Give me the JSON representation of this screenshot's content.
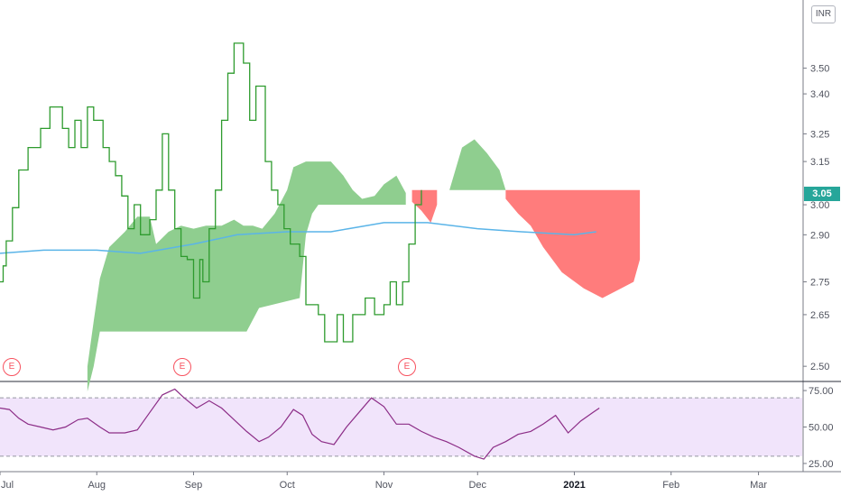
{
  "currency_label": "INR",
  "last_price": "3.05",
  "event_marker_label": "E",
  "colors": {
    "price_line": "#2e9b2e",
    "cloud_bull": "#8fce8f",
    "cloud_bear": "#ff7c7c",
    "ma_line": "#5ab4e8",
    "rsi_line": "#8c2d87",
    "rsi_band": "#f1e4fb",
    "last_price_badge": "#26a69a",
    "event_marker": "#f7525f"
  },
  "chart_data": [
    {
      "type": "line",
      "panel": "price",
      "y_scale": "log",
      "ylim": [
        2.46,
        3.78
      ],
      "y_ticks": [
        "3.50",
        "3.40",
        "3.25",
        "3.15",
        "3.00",
        "2.90",
        "2.75",
        "2.65",
        "2.50"
      ],
      "x_ticks": [
        "Jul",
        "Aug",
        "Sep",
        "Oct",
        "Nov",
        "Dec",
        "2021",
        "Feb",
        "Mar"
      ],
      "x_start": "2020-07-01",
      "x_end": "2021-03-15",
      "grid": false,
      "legend": "none",
      "series": [
        {
          "kind": "step_line",
          "points": [
            [
              "2020-07-01",
              2.75
            ],
            [
              "2020-07-02",
              2.8
            ],
            [
              "2020-07-03",
              2.88
            ],
            [
              "2020-07-05",
              2.99
            ],
            [
              "2020-07-07",
              3.12
            ],
            [
              "2020-07-10",
              3.2
            ],
            [
              "2020-07-14",
              3.27
            ],
            [
              "2020-07-17",
              3.35
            ],
            [
              "2020-07-21",
              3.27
            ],
            [
              "2020-07-23",
              3.2
            ],
            [
              "2020-07-25",
              3.3
            ],
            [
              "2020-07-27",
              3.2
            ],
            [
              "2020-07-29",
              3.35
            ],
            [
              "2020-07-31",
              3.3
            ],
            [
              "2020-08-03",
              3.2
            ],
            [
              "2020-08-05",
              3.15
            ],
            [
              "2020-08-07",
              3.1
            ],
            [
              "2020-08-09",
              3.03
            ],
            [
              "2020-08-11",
              2.92
            ],
            [
              "2020-08-13",
              3.0
            ],
            [
              "2020-08-15",
              2.9
            ],
            [
              "2020-08-18",
              2.95
            ],
            [
              "2020-08-20",
              3.05
            ],
            [
              "2020-08-22",
              3.25
            ],
            [
              "2020-08-24",
              3.05
            ],
            [
              "2020-08-26",
              2.92
            ],
            [
              "2020-08-28",
              2.83
            ],
            [
              "2020-08-30",
              2.82
            ],
            [
              "2020-09-01",
              2.7
            ],
            [
              "2020-09-03",
              2.82
            ],
            [
              "2020-09-04",
              2.75
            ],
            [
              "2020-09-06",
              2.92
            ],
            [
              "2020-09-08",
              3.05
            ],
            [
              "2020-09-10",
              3.3
            ],
            [
              "2020-09-12",
              3.48
            ],
            [
              "2020-09-14",
              3.6
            ],
            [
              "2020-09-17",
              3.52
            ],
            [
              "2020-09-19",
              3.3
            ],
            [
              "2020-09-21",
              3.43
            ],
            [
              "2020-09-24",
              3.15
            ],
            [
              "2020-09-26",
              3.05
            ],
            [
              "2020-09-28",
              3.0
            ],
            [
              "2020-09-30",
              2.92
            ],
            [
              "2020-10-02",
              2.87
            ],
            [
              "2020-10-05",
              2.83
            ],
            [
              "2020-10-07",
              2.68
            ],
            [
              "2020-10-11",
              2.65
            ],
            [
              "2020-10-13",
              2.57
            ],
            [
              "2020-10-17",
              2.65
            ],
            [
              "2020-10-19",
              2.57
            ],
            [
              "2020-10-22",
              2.65
            ],
            [
              "2020-10-26",
              2.7
            ],
            [
              "2020-10-29",
              2.65
            ],
            [
              "2020-11-01",
              2.68
            ],
            [
              "2020-11-03",
              2.75
            ],
            [
              "2020-11-05",
              2.68
            ],
            [
              "2020-11-07",
              2.75
            ],
            [
              "2020-11-09",
              2.87
            ],
            [
              "2020-11-11",
              3.0
            ],
            [
              "2020-11-13",
              3.05
            ]
          ]
        },
        {
          "kind": "moving_average",
          "points": [
            [
              "2020-07-01",
              2.84
            ],
            [
              "2020-07-15",
              2.85
            ],
            [
              "2020-08-01",
              2.85
            ],
            [
              "2020-08-15",
              2.84
            ],
            [
              "2020-09-01",
              2.87
            ],
            [
              "2020-09-15",
              2.9
            ],
            [
              "2020-10-01",
              2.91
            ],
            [
              "2020-10-15",
              2.91
            ],
            [
              "2020-11-01",
              2.94
            ],
            [
              "2020-11-15",
              2.94
            ],
            [
              "2020-12-01",
              2.92
            ],
            [
              "2020-12-15",
              2.91
            ],
            [
              "2021-01-01",
              2.9
            ],
            [
              "2021-01-08",
              2.91
            ]
          ]
        }
      ],
      "cloud": {
        "kind": "ichimoku_kumo",
        "upper": [
          [
            "2020-07-29",
            2.5
          ],
          [
            "2020-07-31",
            2.63
          ],
          [
            "2020-08-02",
            2.76
          ],
          [
            "2020-08-05",
            2.86
          ],
          [
            "2020-08-10",
            2.91
          ],
          [
            "2020-08-14",
            2.96
          ],
          [
            "2020-08-18",
            2.96
          ],
          [
            "2020-08-20",
            2.87
          ],
          [
            "2020-08-24",
            2.91
          ],
          [
            "2020-08-28",
            2.93
          ],
          [
            "2020-09-01",
            2.92
          ],
          [
            "2020-09-05",
            2.93
          ],
          [
            "2020-09-10",
            2.93
          ],
          [
            "2020-09-14",
            2.95
          ],
          [
            "2020-09-17",
            2.93
          ],
          [
            "2020-09-20",
            2.93
          ],
          [
            "2020-09-23",
            2.92
          ],
          [
            "2020-09-27",
            2.97
          ],
          [
            "2020-10-01",
            3.05
          ],
          [
            "2020-10-03",
            3.13
          ],
          [
            "2020-10-07",
            3.15
          ],
          [
            "2020-10-15",
            3.15
          ],
          [
            "2020-10-19",
            3.1
          ],
          [
            "2020-10-22",
            3.05
          ],
          [
            "2020-10-25",
            3.02
          ],
          [
            "2020-10-29",
            3.03
          ],
          [
            "2020-11-01",
            3.07
          ],
          [
            "2020-11-05",
            3.1
          ],
          [
            "2020-11-08",
            3.04
          ]
        ],
        "lower": [
          [
            "2020-07-29",
            2.43
          ],
          [
            "2020-07-31",
            2.5
          ],
          [
            "2020-08-02",
            2.6
          ],
          [
            "2020-08-10",
            2.6
          ],
          [
            "2020-09-01",
            2.6
          ],
          [
            "2020-09-18",
            2.6
          ],
          [
            "2020-09-22",
            2.67
          ],
          [
            "2020-10-05",
            2.7
          ],
          [
            "2020-10-07",
            2.9
          ],
          [
            "2020-10-09",
            2.97
          ],
          [
            "2020-10-11",
            3.0
          ],
          [
            "2020-11-08",
            3.0
          ]
        ],
        "projected": [
          {
            "color": "bear",
            "points": [
              [
                "2020-11-10",
                3.01
              ],
              [
                "2020-11-13",
                2.98
              ],
              [
                "2020-11-16",
                2.94
              ],
              [
                "2020-11-18",
                3.0
              ]
            ]
          },
          {
            "color": "bull",
            "points": [
              [
                "2020-11-22",
                3.05
              ],
              [
                "2020-11-26",
                3.2
              ],
              [
                "2020-11-30",
                3.23
              ],
              [
                "2020-12-04",
                3.18
              ],
              [
                "2020-12-08",
                3.12
              ],
              [
                "2020-12-10",
                3.05
              ]
            ]
          },
          {
            "color": "bear",
            "points": [
              [
                "2020-12-10",
                3.02
              ],
              [
                "2020-12-14",
                2.97
              ],
              [
                "2020-12-18",
                2.93
              ],
              [
                "2020-12-22",
                2.86
              ],
              [
                "2020-12-28",
                2.78
              ],
              [
                "2021-01-04",
                2.73
              ],
              [
                "2021-01-10",
                2.7
              ],
              [
                "2021-01-16",
                2.73
              ],
              [
                "2021-01-20",
                2.75
              ],
              [
                "2021-01-22",
                2.82
              ]
            ]
          }
        ]
      }
    },
    {
      "type": "line",
      "panel": "rsi",
      "ylim": [
        20,
        80
      ],
      "y_ticks": [
        "75.00",
        "50.00",
        "25.00"
      ],
      "band": [
        30,
        70
      ],
      "series": [
        {
          "points": [
            [
              "2020-07-01",
              63
            ],
            [
              "2020-07-04",
              62
            ],
            [
              "2020-07-07",
              56
            ],
            [
              "2020-07-10",
              52
            ],
            [
              "2020-07-14",
              50
            ],
            [
              "2020-07-18",
              48
            ],
            [
              "2020-07-22",
              50
            ],
            [
              "2020-07-26",
              55
            ],
            [
              "2020-07-29",
              56
            ],
            [
              "2020-08-02",
              50
            ],
            [
              "2020-08-05",
              46
            ],
            [
              "2020-08-10",
              46
            ],
            [
              "2020-08-14",
              48
            ],
            [
              "2020-08-18",
              60
            ],
            [
              "2020-08-22",
              72
            ],
            [
              "2020-08-26",
              76
            ],
            [
              "2020-08-29",
              70
            ],
            [
              "2020-09-02",
              63
            ],
            [
              "2020-09-06",
              68
            ],
            [
              "2020-09-10",
              63
            ],
            [
              "2020-09-14",
              55
            ],
            [
              "2020-09-18",
              47
            ],
            [
              "2020-09-22",
              40
            ],
            [
              "2020-09-25",
              43
            ],
            [
              "2020-09-29",
              50
            ],
            [
              "2020-10-03",
              62
            ],
            [
              "2020-10-06",
              58
            ],
            [
              "2020-10-09",
              45
            ],
            [
              "2020-10-12",
              40
            ],
            [
              "2020-10-16",
              38
            ],
            [
              "2020-10-20",
              50
            ],
            [
              "2020-10-24",
              60
            ],
            [
              "2020-10-28",
              70
            ],
            [
              "2020-11-01",
              64
            ],
            [
              "2020-11-05",
              52
            ],
            [
              "2020-11-09",
              52
            ],
            [
              "2020-11-13",
              47
            ],
            [
              "2020-11-17",
              43
            ],
            [
              "2020-11-21",
              40
            ],
            [
              "2020-11-25",
              36
            ],
            [
              "2020-11-30",
              30
            ],
            [
              "2020-12-03",
              28
            ],
            [
              "2020-12-06",
              36
            ],
            [
              "2020-12-10",
              40
            ],
            [
              "2020-12-14",
              45
            ],
            [
              "2020-12-18",
              47
            ],
            [
              "2020-12-22",
              52
            ],
            [
              "2020-12-26",
              58
            ],
            [
              "2020-12-30",
              46
            ],
            [
              "2021-01-03",
              54
            ],
            [
              "2021-01-07",
              60
            ],
            [
              "2021-01-09",
              63
            ]
          ]
        }
      ]
    }
  ]
}
